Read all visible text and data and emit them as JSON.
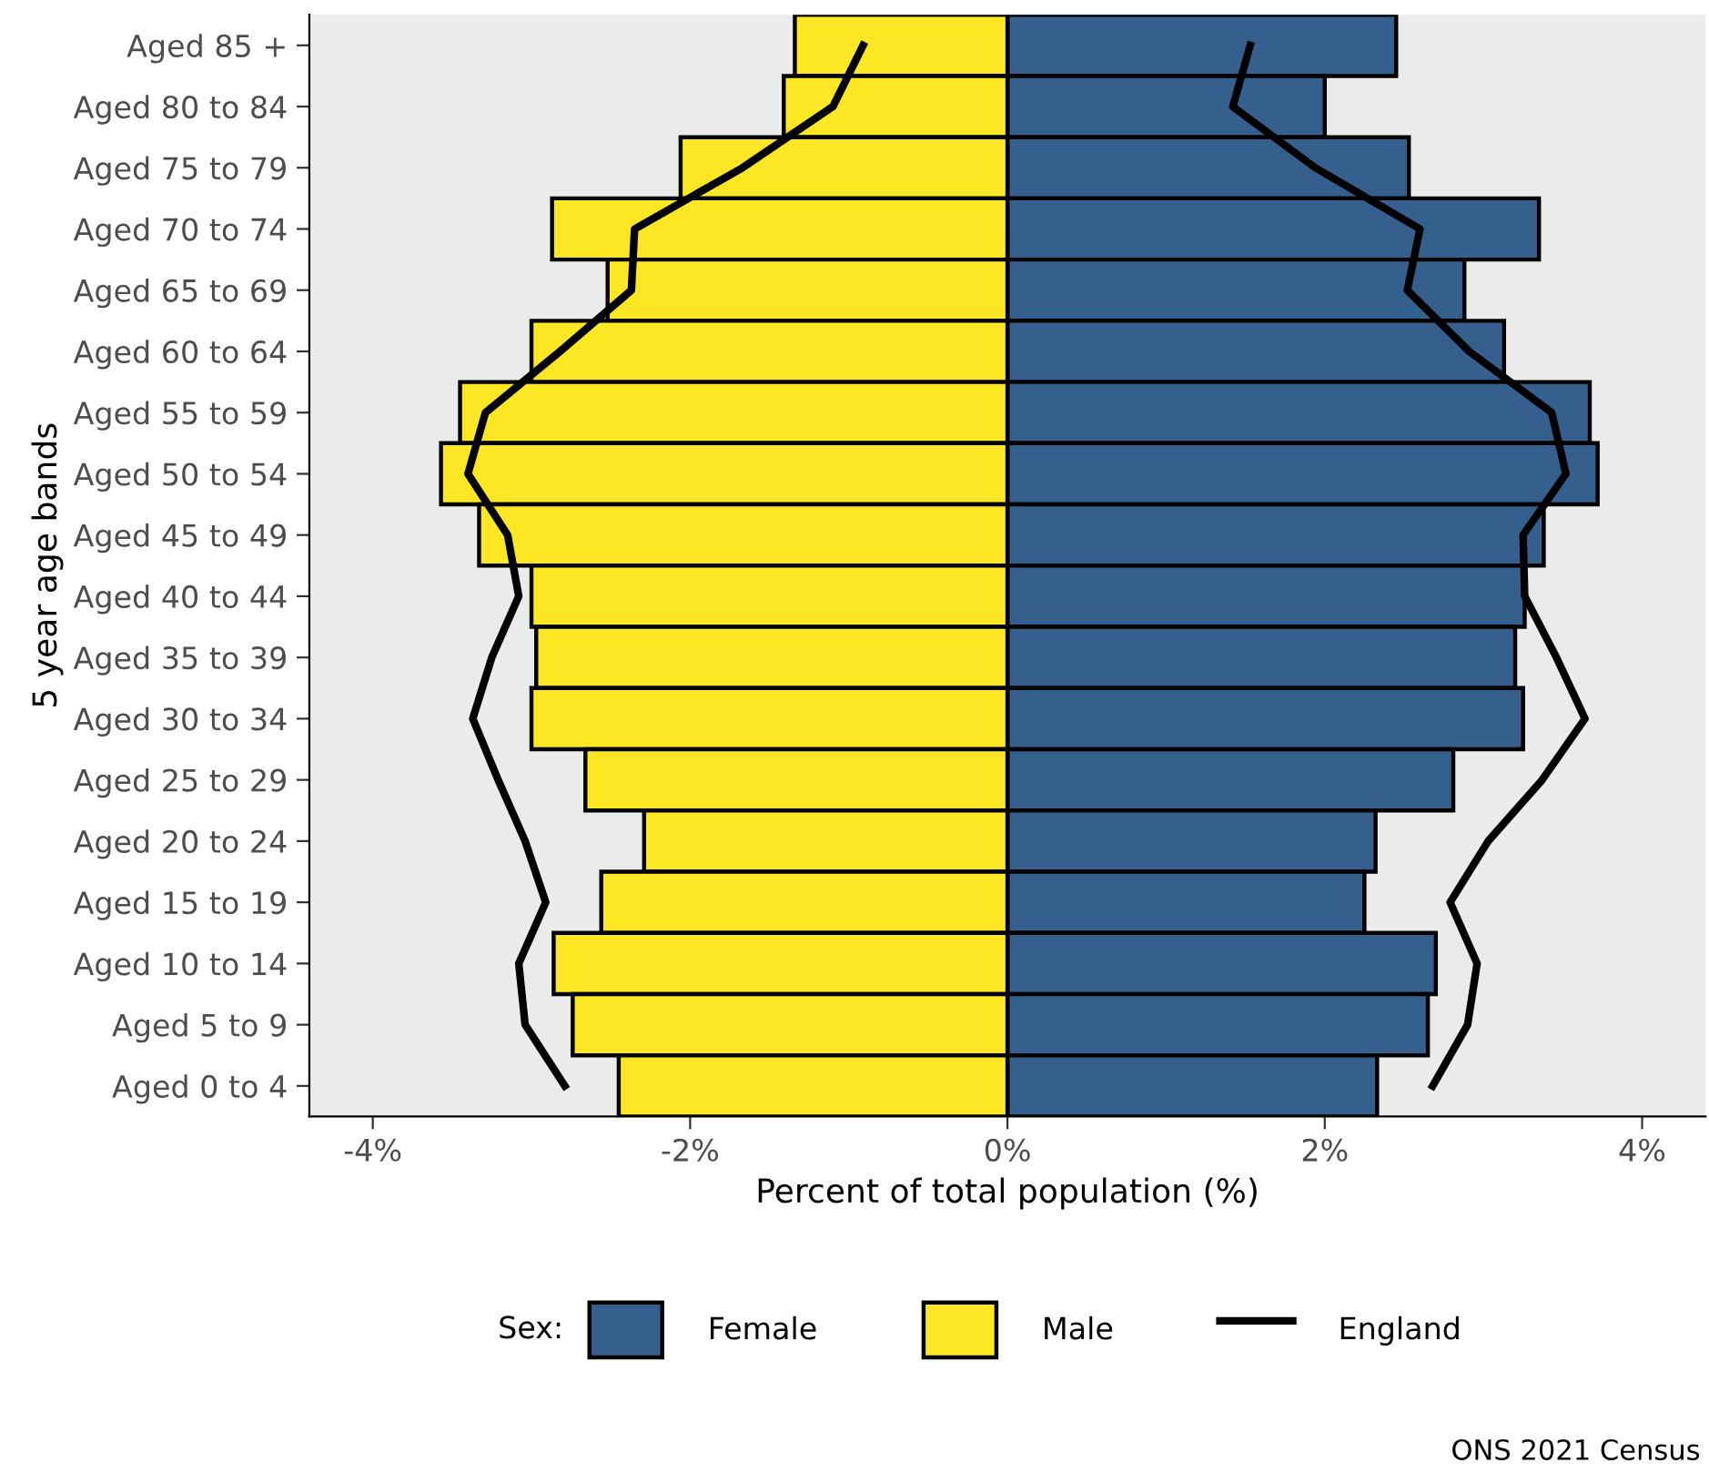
{
  "chart_data": {
    "type": "bar",
    "orientation": "horizontal",
    "stacked": true,
    "xlabel": "Percent of total population (%)",
    "ylabel": "5 year age bands",
    "legend_title": "Sex:",
    "legend": "bottom",
    "grid": false,
    "categories": [
      "Aged 85 +",
      "Aged 80 to 84",
      "Aged 75 to 79",
      "Aged 70 to 74",
      "Aged 65 to 69",
      "Aged 60 to 64",
      "Aged 55 to 59",
      "Aged 50 to 54",
      "Aged 45 to 49",
      "Aged 40 to 44",
      "Aged 35 to 39",
      "Aged 30 to 34",
      "Aged 25 to 29",
      "Aged 20 to 24",
      "Aged 15 to 19",
      "Aged 10 to 14",
      "Aged 5 to 9",
      "Aged 0 to 4"
    ],
    "xlim": [
      -4.4,
      4.4
    ],
    "xticks": [
      {
        "value": -4,
        "label": "-4%"
      },
      {
        "value": -2,
        "label": "-2%"
      },
      {
        "value": 0,
        "label": "0%"
      },
      {
        "value": 2,
        "label": "2%"
      },
      {
        "value": 4,
        "label": "4%"
      }
    ],
    "series": [
      {
        "name": "Female",
        "color": "#355f8d",
        "values": [
          2.45,
          2.0,
          2.53,
          3.35,
          2.88,
          3.13,
          3.67,
          3.72,
          3.38,
          3.26,
          3.2,
          3.25,
          2.81,
          2.32,
          2.25,
          2.7,
          2.65,
          2.33
        ]
      },
      {
        "name": "Male",
        "color": "#fde725",
        "values": [
          -1.34,
          -1.41,
          -2.06,
          -2.87,
          -2.52,
          -3.0,
          -3.45,
          -3.57,
          -3.33,
          -3.0,
          -2.97,
          -3.0,
          -2.66,
          -2.29,
          -2.56,
          -2.86,
          -2.74,
          -2.45
        ]
      },
      {
        "name": "England",
        "type": "line",
        "color": "#000000",
        "line_style": "solid",
        "marker": "none",
        "values": [
          -0.91,
          -1.1,
          -1.67,
          -2.35,
          -2.37,
          -2.82,
          -3.29,
          -3.4,
          -3.15,
          -3.08,
          -3.25,
          -3.37,
          -3.21,
          -3.04,
          -2.91,
          -3.08,
          -3.04,
          -2.79
        ]
      },
      {
        "type": "line",
        "color": "#000000",
        "line_style": "solid",
        "marker": "none",
        "values": [
          1.53,
          1.42,
          1.94,
          2.6,
          2.52,
          2.91,
          3.43,
          3.52,
          3.25,
          3.26,
          3.46,
          3.64,
          3.37,
          3.03,
          2.79,
          2.96,
          2.9,
          2.68
        ]
      }
    ],
    "annotations": [
      "ONS 2021 Census"
    ]
  }
}
